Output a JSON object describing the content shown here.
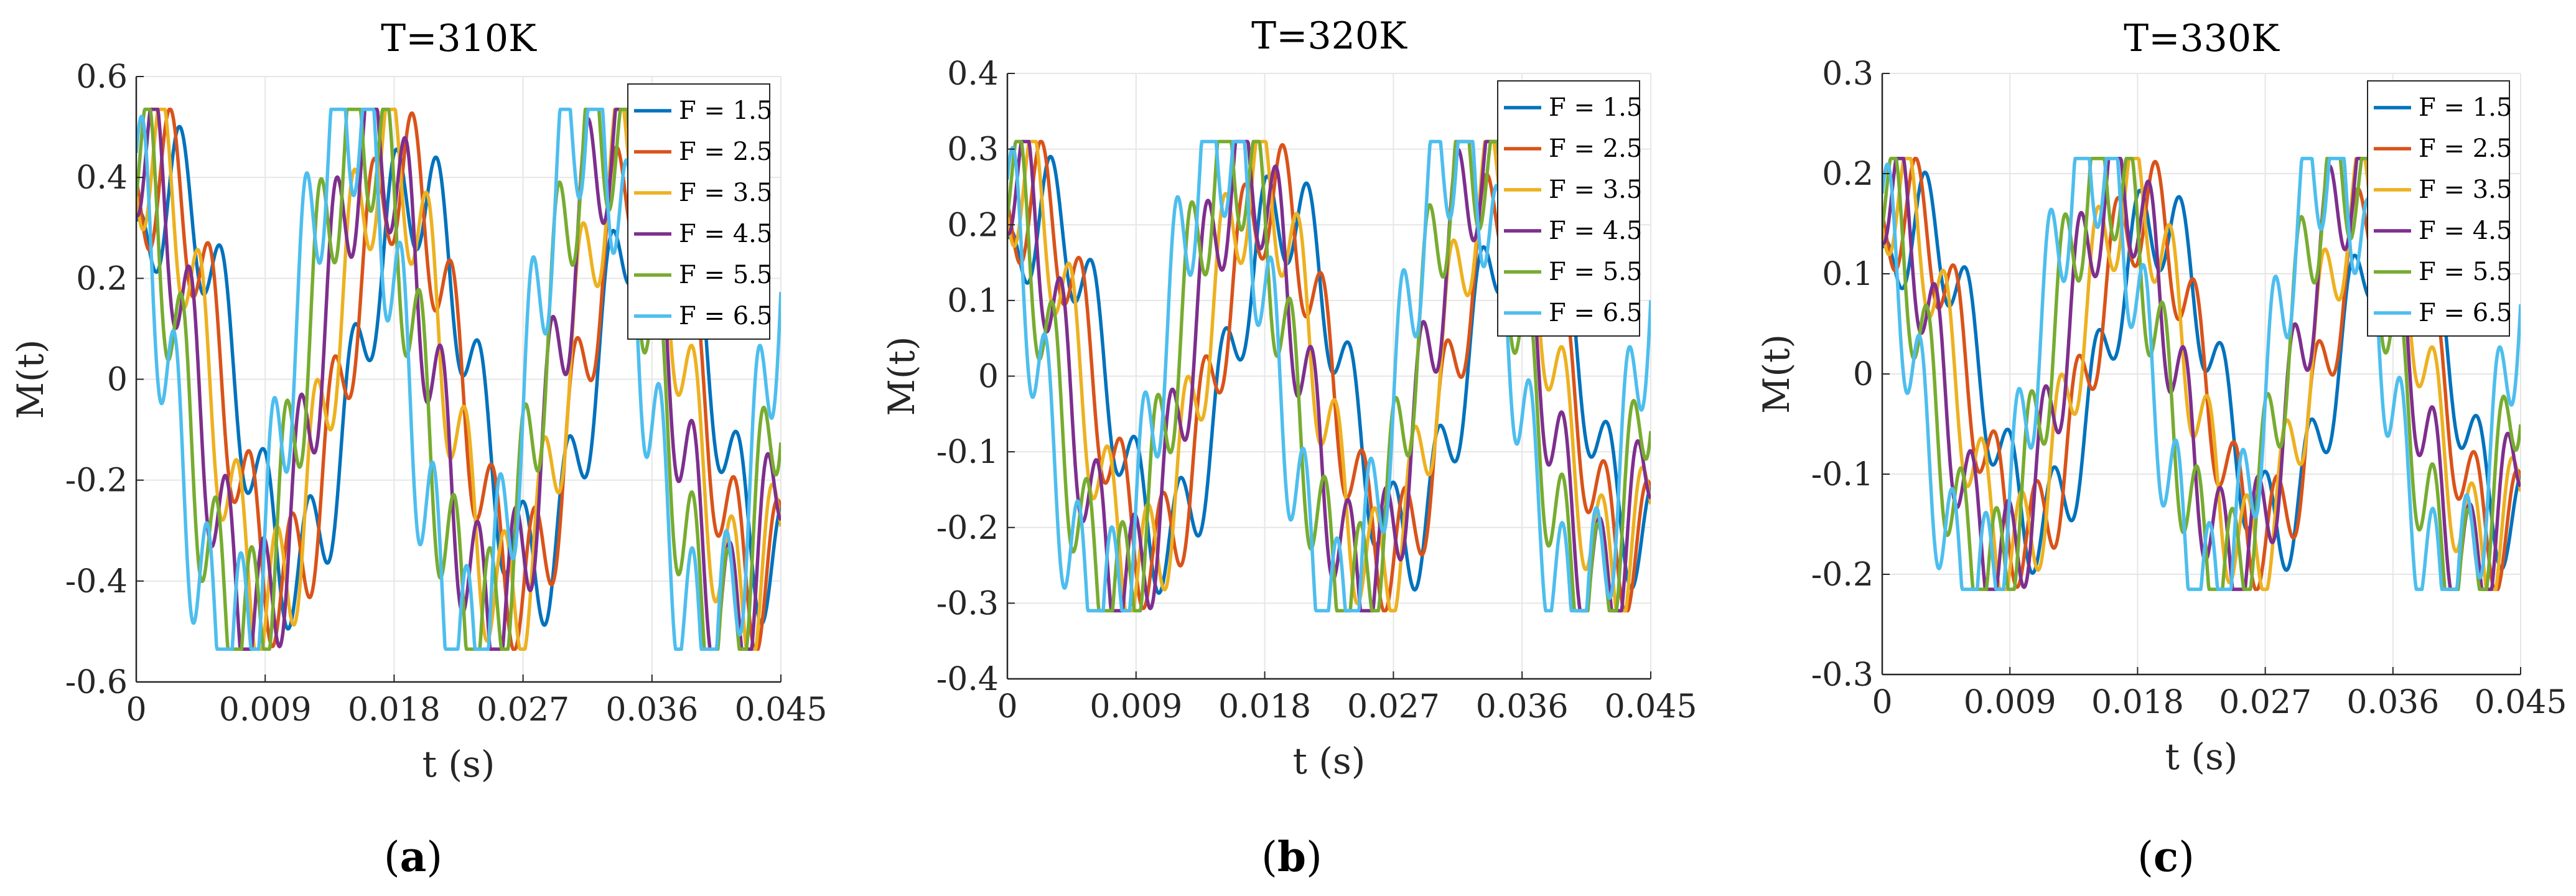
{
  "figure": {
    "panels": [
      {
        "open": "(",
        "letter": "a",
        "close": ")"
      },
      {
        "open": "(",
        "letter": "b",
        "close": ")"
      },
      {
        "open": "(",
        "letter": "c",
        "close": ")"
      }
    ]
  },
  "colors": {
    "series": [
      "#0072BD",
      "#D95319",
      "#EDB120",
      "#7E2F8E",
      "#77AC30",
      "#4DBEEE"
    ],
    "grid": "#e6e6e6",
    "axis": "#262626"
  },
  "chart_data": [
    {
      "type": "line",
      "title": "T=310K",
      "xlabel": "t (s)",
      "ylabel": "M(t)",
      "xlim": [
        0,
        0.045
      ],
      "ylim": [
        -0.6,
        0.6
      ],
      "xticks": [
        0,
        0.009,
        0.018,
        0.027,
        0.036,
        0.045
      ],
      "xtick_labels": [
        "0",
        "0.009",
        "0.018",
        "0.027",
        "0.036",
        "0.045"
      ],
      "yticks": [
        -0.6,
        -0.4,
        -0.2,
        0,
        0.2,
        0.4,
        0.6
      ],
      "ytick_labels": [
        "-0.6",
        "-0.4",
        "-0.2",
        "0",
        "0.2",
        "0.4",
        "0.6"
      ],
      "grid": true,
      "legend_position": "top-right",
      "amplitude": 0.535,
      "series": [
        {
          "name": "F = 1.5",
          "F": 1.5
        },
        {
          "name": "F = 2.5",
          "F": 2.5
        },
        {
          "name": "F = 3.5",
          "F": 3.5
        },
        {
          "name": "F = 4.5",
          "F": 4.5
        },
        {
          "name": "F = 5.5",
          "F": 5.5
        },
        {
          "name": "F = 6.5",
          "F": 6.5
        }
      ]
    },
    {
      "type": "line",
      "title": "T=320K",
      "xlabel": "t (s)",
      "ylabel": "M(t)",
      "xlim": [
        0,
        0.045
      ],
      "ylim": [
        -0.4,
        0.4
      ],
      "xticks": [
        0,
        0.009,
        0.018,
        0.027,
        0.036,
        0.045
      ],
      "xtick_labels": [
        "0",
        "0.009",
        "0.018",
        "0.027",
        "0.036",
        "0.045"
      ],
      "yticks": [
        -0.4,
        -0.3,
        -0.2,
        -0.1,
        0,
        0.1,
        0.2,
        0.3,
        0.4
      ],
      "ytick_labels": [
        "-0.4",
        "-0.3",
        "-0.2",
        "-0.1",
        "0",
        "0.1",
        "0.2",
        "0.3",
        "0.4"
      ],
      "grid": true,
      "legend_position": "top-right",
      "amplitude": 0.31,
      "series": [
        {
          "name": "F = 1.5",
          "F": 1.5
        },
        {
          "name": "F = 2.5",
          "F": 2.5
        },
        {
          "name": "F = 3.5",
          "F": 3.5
        },
        {
          "name": "F = 4.5",
          "F": 4.5
        },
        {
          "name": "F = 5.5",
          "F": 5.5
        },
        {
          "name": "F = 6.5",
          "F": 6.5
        }
      ]
    },
    {
      "type": "line",
      "title": "T=330K",
      "xlabel": "t (s)",
      "ylabel": "M(t)",
      "xlim": [
        0,
        0.045
      ],
      "ylim": [
        -0.3,
        0.3
      ],
      "xticks": [
        0,
        0.009,
        0.018,
        0.027,
        0.036,
        0.045
      ],
      "xtick_labels": [
        "0",
        "0.009",
        "0.018",
        "0.027",
        "0.036",
        "0.045"
      ],
      "yticks": [
        -0.3,
        -0.2,
        -0.1,
        0,
        0.1,
        0.2,
        0.3
      ],
      "ytick_labels": [
        "-0.3",
        "-0.2",
        "-0.1",
        "0",
        "0.1",
        "0.2",
        "0.3"
      ],
      "grid": true,
      "legend_position": "top-right",
      "amplitude": 0.215,
      "series": [
        {
          "name": "F = 1.5",
          "F": 1.5
        },
        {
          "name": "F = 2.5",
          "F": 2.5
        },
        {
          "name": "F = 3.5",
          "F": 3.5
        },
        {
          "name": "F = 4.5",
          "F": 4.5
        },
        {
          "name": "F = 5.5",
          "F": 5.5
        },
        {
          "name": "F = 6.5",
          "F": 6.5
        }
      ]
    }
  ]
}
